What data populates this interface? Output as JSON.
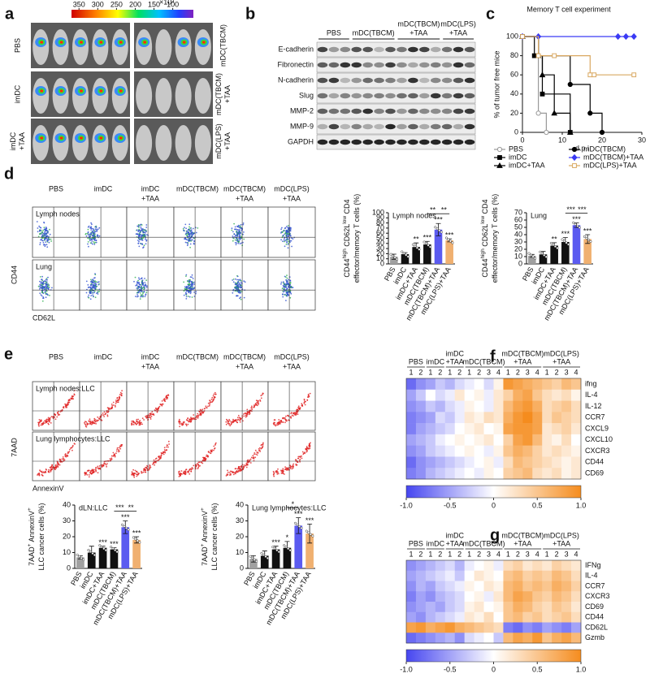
{
  "panel_a": {
    "letter": "a",
    "colorbar": {
      "unit": "×10³",
      "lim": [
        370,
        45
      ],
      "ticks": [
        350,
        300,
        250,
        200,
        150,
        100
      ]
    },
    "left_labels": [
      [
        "PBS"
      ],
      [
        "imDC"
      ],
      [
        "imDC",
        "+TAA"
      ]
    ],
    "right_labels": [
      [
        "mDC(TBCM)"
      ],
      [
        "mDC(TBCM)",
        "+TAA"
      ],
      [
        "mDC(LPS)",
        "+TAA"
      ]
    ]
  },
  "panel_b": {
    "letter": "b",
    "groups": [
      [
        "PBS"
      ],
      [
        "mDC(TBCM)"
      ],
      [
        "mDC(TBCM)",
        "+TAA"
      ],
      [
        "mDC(LPS)",
        "+TAA"
      ]
    ],
    "rows": [
      "E-cadherin",
      "Fibronectin",
      "N-cadherin",
      "Slug",
      "MMP-2",
      "MMP-9",
      "GAPDH"
    ]
  },
  "panel_c": {
    "letter": "c",
    "type": "line",
    "title": "Memory T cell experiment",
    "xlabel": "d.p.i",
    "ylabel": "% of tumor free mice",
    "xlim": [
      0,
      30
    ],
    "xticks": [
      0,
      10,
      20,
      30
    ],
    "ylim": [
      0,
      100
    ],
    "yticks": [
      0,
      20,
      40,
      60,
      80,
      100
    ],
    "series": [
      {
        "name": "PBS",
        "color": "#999999",
        "marker": "open-circle",
        "x": [
          0,
          4,
          6
        ],
        "values": [
          100,
          20,
          0
        ]
      },
      {
        "name": "imDC",
        "color": "#000000",
        "marker": "square",
        "x": [
          0,
          3,
          5,
          12
        ],
        "values": [
          100,
          80,
          40,
          0
        ]
      },
      {
        "name": "imDC+TAA",
        "color": "#000000",
        "marker": "triangle",
        "x": [
          0,
          4,
          5,
          8,
          12
        ],
        "values": [
          100,
          80,
          60,
          20,
          0
        ]
      },
      {
        "name": "mDC(TBCM)",
        "color": "#000000",
        "marker": "circle",
        "x": [
          0,
          4,
          12,
          17,
          20
        ],
        "values": [
          100,
          80,
          50,
          20,
          0
        ]
      },
      {
        "name": "mDC(TBCM)+TAA",
        "color": "#3a3af5",
        "marker": "diamond",
        "x": [
          0,
          4,
          24,
          26,
          28
        ],
        "values": [
          100,
          100,
          100,
          100,
          100
        ]
      },
      {
        "name": "mDC(LPS)+TAA",
        "color": "#d9a860",
        "marker": "open-square",
        "x": [
          0,
          4,
          8,
          17,
          18,
          28
        ],
        "values": [
          100,
          80,
          80,
          60,
          60,
          60
        ]
      }
    ]
  },
  "panel_d": {
    "letter": "d",
    "flow": {
      "columns": [
        [
          "PBS"
        ],
        [
          "imDC"
        ],
        [
          "imDC",
          "+TAA"
        ],
        [
          "mDC(TBCM)"
        ],
        [
          "mDC(TBCM)",
          "+TAA"
        ],
        [
          "mDC(LPS)",
          "+TAA"
        ]
      ],
      "rows": [
        "Lymph nodes",
        "Lung"
      ],
      "y_label": "CD44",
      "x_label": "CD62L"
    },
    "charts": [
      {
        "type": "bar",
        "title": "Lymph nodes",
        "ylabel": [
          [
            "CD44",
            "high",
            " CD62L",
            "low",
            " CD4"
          ],
          [
            "effector/memory T cells (%)"
          ]
        ],
        "categories": [
          "PBS",
          "imDC",
          "imDC+TAA",
          "mDC(TBCM)",
          "mDC(TBCM)+TAA",
          "mDC(LPS)+TAA"
        ],
        "values": [
          14,
          19,
          33,
          38,
          67,
          46
        ],
        "errors": [
          5,
          3,
          8,
          6,
          12,
          3
        ],
        "colors": [
          "#a0a0a0",
          "#111111",
          "#111111",
          "#111111",
          "#5b5bf0",
          "#f0b070"
        ],
        "significance": [
          null,
          null,
          "**",
          "***",
          "***",
          "***"
        ],
        "brackets": [
          {
            "between": [
              "mDC(TBCM)",
              "mDC(TBCM)+TAA"
            ],
            "label": "**"
          },
          {
            "between": [
              "mDC(TBCM)+TAA",
              "mDC(LPS)+TAA"
            ],
            "label": "**"
          }
        ],
        "ylim": [
          0,
          100
        ],
        "yticks": [
          0,
          10,
          20,
          30,
          40,
          50,
          60,
          70,
          80,
          90,
          100
        ]
      },
      {
        "type": "bar",
        "title": "Lung",
        "ylabel": [
          [
            "CD44",
            "high",
            " CD62L",
            "low",
            " CD4"
          ],
          [
            "effector/memory T cells (%)"
          ]
        ],
        "categories": [
          "PBS",
          "imDC",
          "imDC+TAA",
          "mDC(TBCM)",
          "mDC(TBCM)+TAA",
          "mDC(LPS)+TAA"
        ],
        "values": [
          11,
          13,
          25,
          30,
          53,
          34
        ],
        "errors": [
          2,
          4,
          4,
          6,
          3,
          6
        ],
        "colors": [
          "#a0a0a0",
          "#111111",
          "#111111",
          "#111111",
          "#5b5bf0",
          "#f0b070"
        ],
        "significance": [
          null,
          null,
          "**",
          "***",
          "***",
          "***"
        ],
        "brackets": [
          {
            "between": [
              "mDC(TBCM)",
              "mDC(TBCM)+TAA"
            ],
            "label": "***"
          },
          {
            "between": [
              "mDC(TBCM)+TAA",
              "mDC(LPS)+TAA"
            ],
            "label": "***"
          }
        ],
        "ylim": [
          0,
          70
        ],
        "yticks": [
          0,
          10,
          20,
          30,
          40,
          50,
          60,
          70
        ]
      }
    ]
  },
  "panel_e": {
    "letter": "e",
    "flow": {
      "columns": [
        [
          "PBS"
        ],
        [
          "imDC"
        ],
        [
          "imDC",
          "+TAA"
        ],
        [
          "mDC(TBCM)"
        ],
        [
          "mDC(TBCM)",
          "+TAA"
        ],
        [
          "mDC(LPS)",
          "+TAA"
        ]
      ],
      "rows": [
        "Lymph nodes:LLC",
        "Lung lymphocytes:LLC"
      ],
      "y_label": "7AAD",
      "x_label": "AnnexinV"
    },
    "charts": [
      {
        "type": "bar",
        "title": "dLN:LLC",
        "ylabel": [
          [
            "7AAD",
            "+",
            " AnnexinV",
            "+"
          ],
          [
            "LLC cancer cells (%)"
          ]
        ],
        "categories": [
          "PBS",
          "imDC",
          "imDC+TAA",
          "mDC(TBCM)",
          "mDC(TBCM)+TAA",
          "mDC(LPS)+TAA"
        ],
        "values": [
          7,
          10,
          13,
          12,
          26,
          18
        ],
        "errors": [
          1,
          4,
          1,
          1,
          4,
          2
        ],
        "colors": [
          "#a0a0a0",
          "#111111",
          "#111111",
          "#111111",
          "#5b5bf0",
          "#f0b070"
        ],
        "significance": [
          null,
          null,
          "***",
          "***",
          "***",
          "***"
        ],
        "brackets": [
          {
            "between": [
              "mDC(TBCM)",
              "mDC(TBCM)+TAA"
            ],
            "label": "***"
          },
          {
            "between": [
              "mDC(TBCM)+TAA",
              "mDC(LPS)+TAA"
            ],
            "label": "**"
          }
        ],
        "ylim": [
          0,
          40
        ],
        "yticks": [
          0,
          10,
          20,
          30,
          40
        ]
      },
      {
        "type": "bar",
        "title": "Lung lymphocytes:LLC",
        "ylabel": [
          [
            "7AAD",
            "+",
            " AnnexinV",
            "+"
          ],
          [
            "LLC cancer cells (%)"
          ]
        ],
        "categories": [
          "PBS",
          "imDC",
          "imDC+TAA",
          "mDC(TBCM)",
          "mDC(TBCM)+TAA",
          "mDC(LPS)+TAA"
        ],
        "values": [
          6,
          8,
          12,
          13,
          27,
          22
        ],
        "errors": [
          2,
          3,
          2,
          4,
          5,
          6
        ],
        "colors": [
          "#a0a0a0",
          "#111111",
          "#111111",
          "#111111",
          "#5b5bf0",
          "#f0b070"
        ],
        "significance": [
          null,
          null,
          "***",
          "*",
          "***",
          "***"
        ],
        "brackets": [
          {
            "between": [
              "mDC(TBCM)",
              "mDC(TBCM)+TAA"
            ],
            "label": "*"
          }
        ],
        "ylim": [
          0,
          40
        ],
        "yticks": [
          0,
          10,
          20,
          30,
          40
        ]
      }
    ]
  },
  "panel_f": {
    "letter": "f",
    "type": "heatmap",
    "groups": [
      [
        "PBS"
      ],
      [
        "imDC"
      ],
      [
        "imDC",
        "+TAA"
      ],
      [
        "mDC(TBCM)"
      ],
      [
        "mDC(TBCM)",
        "+TAA"
      ],
      [
        "mDC(LPS)",
        "+TAA"
      ]
    ],
    "columns": [
      "1",
      "2",
      "1",
      "2",
      "1",
      "2",
      "1",
      "2",
      "3",
      "4",
      "1",
      "2",
      "3",
      "4",
      "1",
      "2",
      "3",
      "4"
    ],
    "rows": [
      "ifng",
      "IL-4",
      "IL-12",
      "CCR7",
      "CXCL9",
      "CXCL10",
      "CXCR3",
      "CD44",
      "CD69"
    ],
    "values": [
      [
        -0.8,
        -0.6,
        -0.5,
        -0.3,
        -0.4,
        -0.2,
        -0.1,
        0.0,
        -0.2,
        0.1,
        0.9,
        0.8,
        0.7,
        0.6,
        0.5,
        0.4,
        0.6,
        0.5
      ],
      [
        -0.5,
        -0.3,
        0.0,
        -0.2,
        -0.1,
        0.2,
        0.0,
        0.1,
        -0.1,
        0.2,
        0.4,
        0.7,
        0.8,
        0.5,
        0.3,
        0.2,
        0.3,
        0.1
      ],
      [
        -0.6,
        -0.5,
        -0.3,
        -0.4,
        -0.2,
        -0.1,
        0.1,
        0.0,
        -0.1,
        0.2,
        0.6,
        0.8,
        0.9,
        0.7,
        0.3,
        0.4,
        0.5,
        0.3
      ],
      [
        -0.7,
        -0.6,
        -0.5,
        -0.2,
        -0.3,
        -0.1,
        0.2,
        0.1,
        0.3,
        0.2,
        0.7,
        0.9,
        1.0,
        0.8,
        0.3,
        0.5,
        0.4,
        0.3
      ],
      [
        -0.7,
        -0.5,
        -0.4,
        -0.3,
        -0.2,
        0.0,
        0.1,
        0.2,
        0.0,
        0.1,
        0.8,
        0.9,
        0.9,
        0.8,
        0.2,
        0.3,
        0.4,
        0.2
      ],
      [
        -0.5,
        -0.4,
        -0.3,
        -0.1,
        0.0,
        0.1,
        0.0,
        0.1,
        0.2,
        0.0,
        0.4,
        0.8,
        0.9,
        0.6,
        0.2,
        0.1,
        0.3,
        0.0
      ],
      [
        -0.6,
        -0.5,
        -0.3,
        -0.2,
        -0.1,
        0.0,
        0.1,
        0.0,
        -0.1,
        0.1,
        0.5,
        0.7,
        0.6,
        0.4,
        0.2,
        0.3,
        0.2,
        0.1
      ],
      [
        -0.8,
        -0.6,
        -0.5,
        -0.4,
        -0.3,
        -0.2,
        -0.1,
        0.0,
        0.1,
        -0.1,
        0.3,
        0.6,
        0.5,
        0.4,
        0.3,
        0.2,
        0.1,
        0.2
      ],
      [
        -0.7,
        -0.6,
        -0.4,
        -0.3,
        -0.2,
        -0.1,
        0.0,
        -0.1,
        0.1,
        0.0,
        0.4,
        0.5,
        0.6,
        0.3,
        0.2,
        0.3,
        0.1,
        0.2
      ]
    ],
    "clim": [
      -1,
      1
    ],
    "cticks": [
      {
        "value": -1,
        "label": "-1.0"
      },
      -0.5,
      0,
      0.5,
      {
        "value": 1,
        "label": "1.0"
      }
    ]
  },
  "panel_g": {
    "letter": "g",
    "type": "heatmap",
    "groups": [
      [
        "PBS"
      ],
      [
        "imDC"
      ],
      [
        "imDC",
        "+TAA"
      ],
      [
        "mDC(TBCM)"
      ],
      [
        "mDC(TBCM)",
        "+TAA"
      ],
      [
        "mDC(LPS)",
        "+TAA"
      ]
    ],
    "columns": [
      "1",
      "2",
      "1",
      "2",
      "1",
      "2",
      "1",
      "2",
      "3",
      "4",
      "1",
      "2",
      "3",
      "4",
      "1",
      "2",
      "3",
      "4"
    ],
    "rows": [
      "IFNg",
      "IL-4",
      "CCR7",
      "CXCR3",
      "CD69",
      "CD44",
      "CD62L",
      "Gzmb"
    ],
    "values": [
      [
        -0.6,
        -0.5,
        -0.4,
        -0.3,
        -0.2,
        -0.4,
        -0.1,
        0.0,
        0.1,
        -0.1,
        0.3,
        0.4,
        0.2,
        0.3,
        0.2,
        0.4,
        0.3,
        0.2
      ],
      [
        -0.5,
        -0.4,
        -0.3,
        -0.2,
        -0.1,
        -0.3,
        0.0,
        0.2,
        0.1,
        0.0,
        0.5,
        0.6,
        0.4,
        0.5,
        0.4,
        0.6,
        0.5,
        0.3
      ],
      [
        -0.6,
        -0.4,
        -0.5,
        -0.3,
        -0.2,
        -0.1,
        0.1,
        0.0,
        0.2,
        0.1,
        0.6,
        0.7,
        0.5,
        0.6,
        0.5,
        0.7,
        0.6,
        0.4
      ],
      [
        -0.7,
        -0.5,
        -0.6,
        -0.4,
        -0.3,
        -0.2,
        0.0,
        0.1,
        -0.1,
        0.2,
        0.6,
        0.8,
        0.7,
        0.5,
        0.4,
        0.6,
        0.5,
        0.3
      ],
      [
        -0.6,
        -0.5,
        -0.4,
        -0.5,
        -0.3,
        -0.2,
        0.1,
        0.2,
        0.0,
        0.1,
        0.5,
        0.7,
        0.6,
        0.4,
        0.3,
        0.5,
        0.4,
        0.2
      ],
      [
        -0.5,
        -0.6,
        -0.4,
        -0.3,
        -0.2,
        -0.1,
        0.2,
        0.1,
        0.3,
        0.0,
        0.5,
        0.6,
        0.4,
        0.5,
        0.3,
        0.4,
        0.5,
        0.3
      ],
      [
        0.8,
        0.9,
        0.7,
        0.8,
        0.9,
        0.7,
        0.6,
        0.5,
        0.4,
        0.3,
        -0.7,
        -0.8,
        -0.6,
        -0.7,
        -0.5,
        -0.6,
        -0.7,
        -0.5
      ],
      [
        -0.8,
        -0.7,
        -0.6,
        -0.5,
        -0.4,
        -0.6,
        -0.2,
        -0.1,
        0.0,
        -0.3,
        0.6,
        0.8,
        0.7,
        0.9,
        0.5,
        0.7,
        0.8,
        0.6
      ]
    ],
    "clim": [
      -1,
      1
    ],
    "cticks": [
      {
        "value": -1,
        "label": "-1.0"
      },
      -0.5,
      0,
      0.5,
      {
        "value": 1,
        "label": "1.0"
      }
    ]
  }
}
